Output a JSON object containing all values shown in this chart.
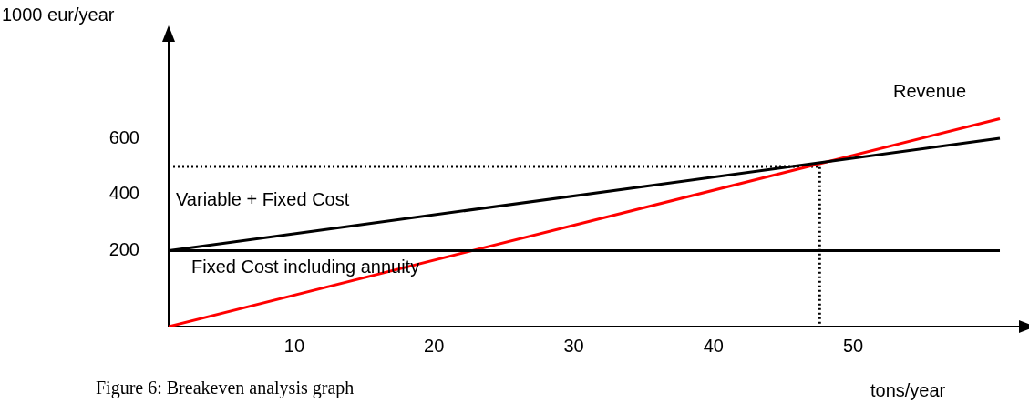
{
  "chart_data": {
    "type": "line",
    "xlabel": "tons/year",
    "ylabel": "1000 eur/year",
    "xlim": [
      1,
      62
    ],
    "ylim": [
      -70,
      950
    ],
    "xticks": [
      10,
      20,
      30,
      40,
      50
    ],
    "yticks": [
      200,
      400,
      600
    ],
    "grid": false,
    "legend": false,
    "marker": "none",
    "series": [
      {
        "name": "Fixed Cost including annuity",
        "color": "#000000",
        "x": [
          1,
          60.5
        ],
        "values": [
          200,
          200
        ]
      },
      {
        "name": "Variable + Fixed Cost",
        "color": "#000000",
        "x": [
          1,
          60.5
        ],
        "values": [
          200,
          600
        ]
      },
      {
        "name": "Revenue",
        "color": "#ff0000",
        "x": [
          1,
          60.5
        ],
        "values": [
          -70,
          670
        ]
      },
      {
        "color": "#000000",
        "line_style": "dotted",
        "x": [
          1,
          47.6,
          47.6
        ],
        "values": [
          500,
          500,
          -70
        ]
      }
    ],
    "annotations": [
      "Figure 6: Breakeven analysis graph"
    ]
  }
}
